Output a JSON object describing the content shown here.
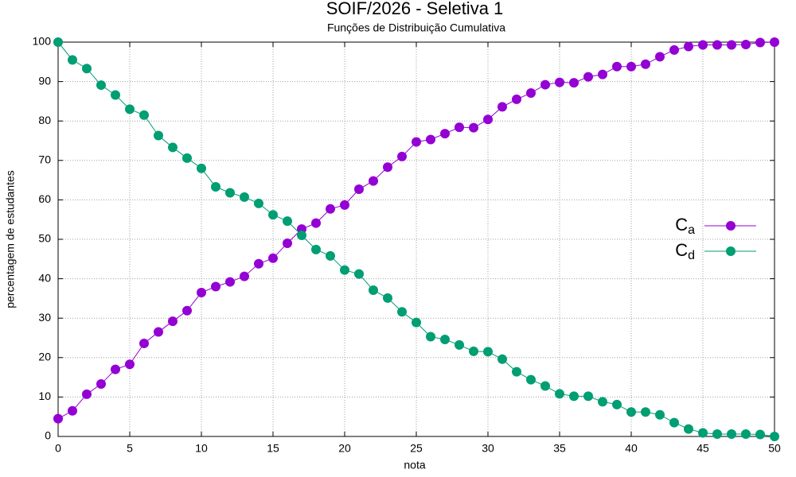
{
  "chart_data": {
    "type": "line",
    "title": "SOIF/2026 - Seletiva 1",
    "subtitle": "Funções de Distribuição Cumulativa",
    "x_label": "nota",
    "y_label": "percentagem de estudantes",
    "x": [
      0,
      1,
      2,
      3,
      4,
      5,
      6,
      7,
      8,
      9,
      10,
      11,
      12,
      13,
      14,
      15,
      16,
      17,
      18,
      19,
      20,
      21,
      22,
      23,
      24,
      25,
      26,
      27,
      28,
      29,
      30,
      31,
      32,
      33,
      34,
      35,
      36,
      37,
      38,
      39,
      40,
      41,
      42,
      43,
      44,
      45,
      46,
      47,
      48,
      49,
      50
    ],
    "series": [
      {
        "name": "Ca",
        "color": "#9400d3",
        "values": [
          4.5,
          6.5,
          10.7,
          13.3,
          17,
          18.3,
          23.6,
          26.5,
          29.2,
          31.9,
          36.5,
          38,
          39.2,
          40.6,
          43.8,
          45.2,
          49,
          52.6,
          54.1,
          57.7,
          58.7,
          62.7,
          64.8,
          68.3,
          71,
          74.7,
          75.3,
          76.8,
          78.4,
          78.3,
          80.4,
          83.6,
          85.5,
          87.1,
          89.2,
          89.8,
          89.7,
          91.2,
          91.8,
          93.8,
          93.8,
          94.4,
          96.3,
          98,
          98.9,
          99.3,
          99.3,
          99.3,
          99.4,
          99.9,
          100
        ]
      },
      {
        "name": "Cd",
        "color": "#009e73",
        "values": [
          100,
          95.5,
          93.3,
          89.1,
          86.6,
          83,
          81.5,
          76.3,
          73.3,
          70.6,
          68,
          63.3,
          61.8,
          60.7,
          59.1,
          56.2,
          54.6,
          51,
          47.4,
          45.8,
          42.2,
          41.2,
          37.1,
          35.1,
          31.6,
          28.9,
          25.3,
          24.6,
          23.2,
          21.6,
          21.5,
          19.6,
          16.4,
          14.4,
          12.8,
          10.8,
          10.2,
          10.2,
          8.8,
          8.1,
          6.2,
          6.2,
          5.5,
          3.5,
          1.9,
          0.9,
          0.6,
          0.6,
          0.6,
          0.5,
          0
        ]
      }
    ],
    "xlim": [
      0,
      50
    ],
    "xticks": [
      0,
      5,
      10,
      15,
      20,
      25,
      30,
      35,
      40,
      45,
      50
    ],
    "ylim": [
      0,
      100
    ],
    "yticks": [
      0,
      10,
      20,
      30,
      40,
      50,
      60,
      70,
      80,
      90,
      100
    ],
    "grid": true,
    "legend": "right"
  }
}
